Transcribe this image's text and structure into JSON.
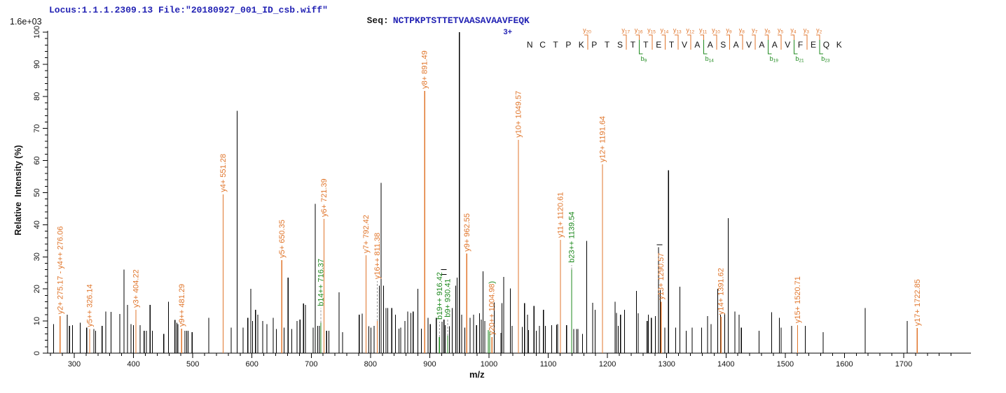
{
  "header": {
    "locus_file": "Locus:1.1.1.2309.13 File:\"20180927_001_ID_csb.wiff\"",
    "seq_label": "Seq:",
    "sequence": "NCTPKPTSTTETVAASAVAAVFEQK",
    "base_peak_intensity": "1.6e+03"
  },
  "colors": {
    "y_ion": "#e0762c",
    "b_ion": "#1f8a1f",
    "peak": "#000000",
    "leader": "#999999",
    "header_text": "#2323b4",
    "axis": "#000000"
  },
  "sequence_panel": {
    "charge": "3+",
    "residues": "NCTPKPTSTTETVAASAVAAVFEQK",
    "y_markers": [
      {
        "label": "y20",
        "after": 5
      },
      {
        "label": "y17",
        "after": 8
      },
      {
        "label": "y16",
        "after": 9
      },
      {
        "label": "y15",
        "after": 10
      },
      {
        "label": "y14",
        "after": 11
      },
      {
        "label": "y13",
        "after": 12
      },
      {
        "label": "y12",
        "after": 13
      },
      {
        "label": "y11",
        "after": 14
      },
      {
        "label": "y10",
        "after": 15
      },
      {
        "label": "y9",
        "after": 16
      },
      {
        "label": "y8",
        "after": 17
      },
      {
        "label": "y7",
        "after": 18
      },
      {
        "label": "y6",
        "after": 19
      },
      {
        "label": "y5",
        "after": 20
      },
      {
        "label": "y4",
        "after": 21
      },
      {
        "label": "y3",
        "after": 22
      },
      {
        "label": "y2",
        "after": 23
      }
    ],
    "b_markers": [
      {
        "label": "b9",
        "after": 9
      },
      {
        "label": "b14",
        "after": 14
      },
      {
        "label": "b19",
        "after": 19
      },
      {
        "label": "b21",
        "after": 21
      },
      {
        "label": "b23",
        "after": 23
      }
    ]
  },
  "chart_data": {
    "type": "bar",
    "subtype": "mass-spectrum",
    "x": {
      "label": "m/z",
      "min": 255,
      "max": 1815,
      "major_ticks": [
        300,
        400,
        500,
        600,
        700,
        800,
        900,
        1000,
        1100,
        1200,
        1300,
        1400,
        1500,
        1600,
        1700
      ],
      "minor_step": 20,
      "minor_range": [
        260,
        1780
      ]
    },
    "y": {
      "label": "Relative  Intensity (%)",
      "min": 0,
      "max": 100,
      "major_step": 10,
      "minor_step": 2,
      "top_annotation": "1.6e+03"
    },
    "labeled_peaks": [
      {
        "label": "y2+ 275.17 - y4++ 276.06",
        "mz": 276.06,
        "pct": 11.5,
        "ion": "y"
      },
      {
        "label": "y5++ 326.14",
        "mz": 326.14,
        "pct": 7.5,
        "ion": "y"
      },
      {
        "label": "y3+ 404.22",
        "mz": 404.22,
        "pct": 13.5,
        "ion": "y"
      },
      {
        "label": "y9++ 481.29",
        "mz": 481.29,
        "pct": 7.6,
        "ion": "y"
      },
      {
        "label": "y4+ 551.28",
        "mz": 551.28,
        "pct": 49.5,
        "ion": "y"
      },
      {
        "label": "y5+ 650.35",
        "mz": 650.35,
        "pct": 29,
        "ion": "y"
      },
      {
        "label": "b14++ 716.37",
        "mz": 716.37,
        "pct": 9.5,
        "ion": "b",
        "leader_to_pct": 14
      },
      {
        "label": "y6+ 721.39",
        "mz": 721.39,
        "pct": 41.8,
        "ion": "y"
      },
      {
        "label": "y7+ 792.42",
        "mz": 792.42,
        "pct": 30.5,
        "ion": "y"
      },
      {
        "label": "y16++ 811.38",
        "mz": 811.38,
        "pct": 10,
        "ion": "y",
        "leader_to_pct": 22.4
      },
      {
        "label": "y8+ 891.49",
        "mz": 891.49,
        "pct": 81.7,
        "ion": "y"
      },
      {
        "label": "b19++ 916.42",
        "mz": 916.42,
        "pct": 5,
        "ion": "b",
        "leader_to_pct": 9.8
      },
      {
        "label": "b9+ 930.41",
        "mz": 930.41,
        "pct": 5.5,
        "ion": "b",
        "leader_to_pct": 10.5
      },
      {
        "label": "y9+ 962.55",
        "mz": 962.55,
        "pct": 31,
        "ion": "y"
      },
      {
        "label": "y20++ 1004.98",
        "mz": 1004.98,
        "pct": 5,
        "ion": "y",
        "suffix": ")"
      },
      {
        "label": "y10+ 1049.57",
        "mz": 1049.57,
        "pct": 66.5,
        "ion": "y"
      },
      {
        "label": "y11+ 1120.61",
        "mz": 1120.61,
        "pct": 35.3,
        "ion": "y"
      },
      {
        "label": "b23++ 1139.54",
        "mz": 1139.54,
        "pct": 26,
        "ion": "b",
        "leader_to_pct": 27.5
      },
      {
        "label": "y12+ 1191.64",
        "mz": 1191.64,
        "pct": 58.8,
        "ion": "y"
      },
      {
        "label": "y13+ 1290.57",
        "mz": 1290.57,
        "pct": 16,
        "ion": "y"
      },
      {
        "label": "y14+ 1391.62",
        "mz": 1391.62,
        "pct": 11.3,
        "ion": "y"
      },
      {
        "label": "y15+ 1520.71",
        "mz": 1520.71,
        "pct": 8.7,
        "ion": "y"
      },
      {
        "label": "y17+ 1722.85",
        "mz": 1722.85,
        "pct": 7.8,
        "ion": "y"
      }
    ],
    "unlabeled_green_peaks": [
      [
        999,
        7.2
      ],
      [
        1001,
        6.8
      ]
    ],
    "isotope_dashes": [
      [
        924,
        24.5
      ],
      [
        924,
        26
      ],
      [
        1288,
        33.8
      ]
    ],
    "unlabeled_peaks": [
      [
        265,
        9
      ],
      [
        288,
        12
      ],
      [
        292,
        8.5
      ],
      [
        297,
        8.7
      ],
      [
        310,
        9.5
      ],
      [
        321,
        8
      ],
      [
        333,
        7.5
      ],
      [
        336,
        7
      ],
      [
        347,
        8.5
      ],
      [
        353,
        13
      ],
      [
        362,
        12.8
      ],
      [
        377,
        12.2
      ],
      [
        384,
        26
      ],
      [
        390,
        15
      ],
      [
        396,
        9
      ],
      [
        400,
        8.7
      ],
      [
        411,
        8.7
      ],
      [
        418,
        7
      ],
      [
        422,
        7
      ],
      [
        428,
        15
      ],
      [
        432,
        7
      ],
      [
        451,
        6
      ],
      [
        459,
        16
      ],
      [
        470,
        10.4
      ],
      [
        473,
        9.5
      ],
      [
        475,
        9
      ],
      [
        487,
        7
      ],
      [
        490,
        7
      ],
      [
        492,
        7
      ],
      [
        499,
        6.5
      ],
      [
        527,
        11
      ],
      [
        565,
        8
      ],
      [
        575,
        75.5
      ],
      [
        585,
        8
      ],
      [
        593,
        11
      ],
      [
        598,
        20
      ],
      [
        601,
        10
      ],
      [
        606,
        13.5
      ],
      [
        610,
        12
      ],
      [
        618,
        10
      ],
      [
        625,
        9
      ],
      [
        636,
        11
      ],
      [
        641,
        7.5
      ],
      [
        654,
        8
      ],
      [
        661,
        23.5
      ],
      [
        667,
        7.5
      ],
      [
        676,
        10
      ],
      [
        681,
        10.5
      ],
      [
        687,
        15.5
      ],
      [
        690,
        15
      ],
      [
        703,
        8
      ],
      [
        707,
        46.5
      ],
      [
        711,
        8.5
      ],
      [
        714,
        8.5
      ],
      [
        726,
        7
      ],
      [
        730,
        7
      ],
      [
        747,
        19
      ],
      [
        753,
        6.5
      ],
      [
        781,
        12
      ],
      [
        786,
        12.3
      ],
      [
        797,
        8.4
      ],
      [
        801,
        8
      ],
      [
        806,
        8.5
      ],
      [
        815,
        21
      ],
      [
        818,
        53
      ],
      [
        822,
        21
      ],
      [
        826,
        14
      ],
      [
        829,
        14
      ],
      [
        836,
        14
      ],
      [
        842,
        12
      ],
      [
        848,
        7.6
      ],
      [
        851,
        8
      ],
      [
        858,
        10
      ],
      [
        863,
        13
      ],
      [
        868,
        12.5
      ],
      [
        872,
        13
      ],
      [
        880,
        20
      ],
      [
        886,
        7.6
      ],
      [
        897,
        11
      ],
      [
        901,
        9
      ],
      [
        911,
        11
      ],
      [
        921,
        9.8
      ],
      [
        924,
        10.5
      ],
      [
        926,
        8.7
      ],
      [
        933,
        8.4
      ],
      [
        938,
        14
      ],
      [
        944,
        21
      ],
      [
        946,
        23.5
      ],
      [
        950,
        100
      ],
      [
        954,
        12
      ],
      [
        959,
        8
      ],
      [
        968,
        11
      ],
      [
        974,
        12
      ],
      [
        979,
        8.7
      ],
      [
        984,
        12.4
      ],
      [
        987,
        10.5
      ],
      [
        990,
        25.5
      ],
      [
        993,
        10
      ],
      [
        1009,
        15.8
      ],
      [
        1020,
        6.3
      ],
      [
        1022,
        15.6
      ],
      [
        1025,
        23.8
      ],
      [
        1036,
        20.2
      ],
      [
        1039,
        8.5
      ],
      [
        1056,
        8.2
      ],
      [
        1060,
        15.6
      ],
      [
        1065,
        12
      ],
      [
        1067,
        7.2
      ],
      [
        1076,
        14.7
      ],
      [
        1080,
        7
      ],
      [
        1085,
        8.5
      ],
      [
        1092,
        13.5
      ],
      [
        1095,
        8.5
      ],
      [
        1106,
        8.7
      ],
      [
        1114,
        8.8
      ],
      [
        1116,
        9
      ],
      [
        1131,
        8.7
      ],
      [
        1143,
        7.5
      ],
      [
        1148,
        7.5
      ],
      [
        1150,
        7.5
      ],
      [
        1158,
        6
      ],
      [
        1165,
        35
      ],
      [
        1175,
        15.7
      ],
      [
        1179,
        13.5
      ],
      [
        1213,
        16
      ],
      [
        1215,
        12.5
      ],
      [
        1218,
        8.5
      ],
      [
        1222,
        12
      ],
      [
        1229,
        13.5
      ],
      [
        1249,
        19.4
      ],
      [
        1252,
        12.4
      ],
      [
        1267,
        10
      ],
      [
        1269,
        12
      ],
      [
        1274,
        11
      ],
      [
        1281,
        11.5
      ],
      [
        1286,
        33
      ],
      [
        1289,
        19.6
      ],
      [
        1297,
        8
      ],
      [
        1303,
        57
      ],
      [
        1315,
        8
      ],
      [
        1322,
        20.7
      ],
      [
        1333,
        7
      ],
      [
        1343,
        8
      ],
      [
        1359,
        8
      ],
      [
        1369,
        11.6
      ],
      [
        1375,
        9
      ],
      [
        1386,
        20
      ],
      [
        1391,
        12
      ],
      [
        1398,
        12.4
      ],
      [
        1404,
        42
      ],
      [
        1415,
        13
      ],
      [
        1422,
        12
      ],
      [
        1426,
        8
      ],
      [
        1456,
        7
      ],
      [
        1477,
        12.7
      ],
      [
        1490,
        11
      ],
      [
        1493,
        8
      ],
      [
        1511,
        8.5
      ],
      [
        1534,
        8.5
      ],
      [
        1564,
        6.5
      ],
      [
        1635,
        14
      ],
      [
        1706,
        10
      ]
    ]
  }
}
